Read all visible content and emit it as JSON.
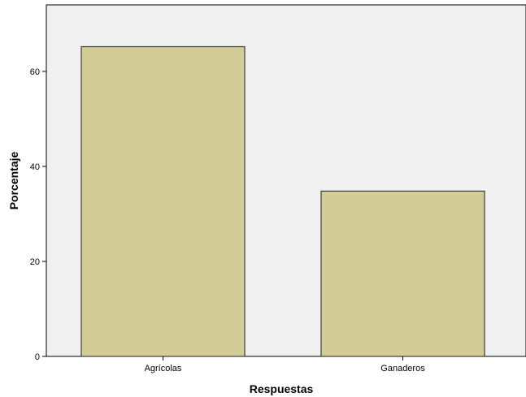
{
  "chart_data": {
    "type": "bar",
    "title": "",
    "xlabel": "Respuestas",
    "ylabel": "Porcentaje",
    "categories": [
      "Agrícolas",
      "Ganaderos"
    ],
    "values": [
      65.2,
      34.8
    ],
    "ylim": [
      0,
      74
    ],
    "yticks": [
      0,
      20,
      40,
      60
    ],
    "grid": false,
    "colors": {
      "bar_fill": "#d3cc96",
      "bar_stroke": "#3c3c32",
      "plot_background": "#f0f0f0",
      "page_background": "#ffffff",
      "axis": "#000000"
    }
  }
}
